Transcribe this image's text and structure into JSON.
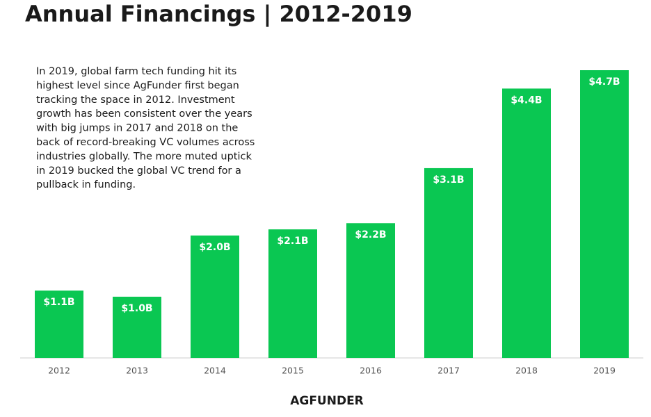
{
  "chart_data": {
    "type": "bar",
    "title": "Annual Financings | 2012-2019",
    "annotation": [
      "In 2019, global farm tech funding hit its",
      "highest level since AgFunder first began",
      "tracking the space in 2012. Investment",
      "growth has been consistent over the years",
      "with big jumps in 2017 and 2018 on the",
      "back of record-breaking VC volumes across",
      "industries globally. The more muted uptick",
      "in 2019 bucked the global VC trend for a",
      "pullback in funding."
    ],
    "categories": [
      "2012",
      "2013",
      "2014",
      "2015",
      "2016",
      "2017",
      "2018",
      "2019"
    ],
    "values": [
      1.1,
      1.0,
      2.0,
      2.1,
      2.2,
      3.1,
      4.4,
      4.7
    ],
    "value_labels": [
      "$1.1B",
      "$1.0B",
      "$2.0B",
      "$2.1B",
      "$2.2B",
      "$3.1B",
      "$4.4B",
      "$4.7B"
    ],
    "color": "#0ac752",
    "logo": "AGFUNDER"
  }
}
